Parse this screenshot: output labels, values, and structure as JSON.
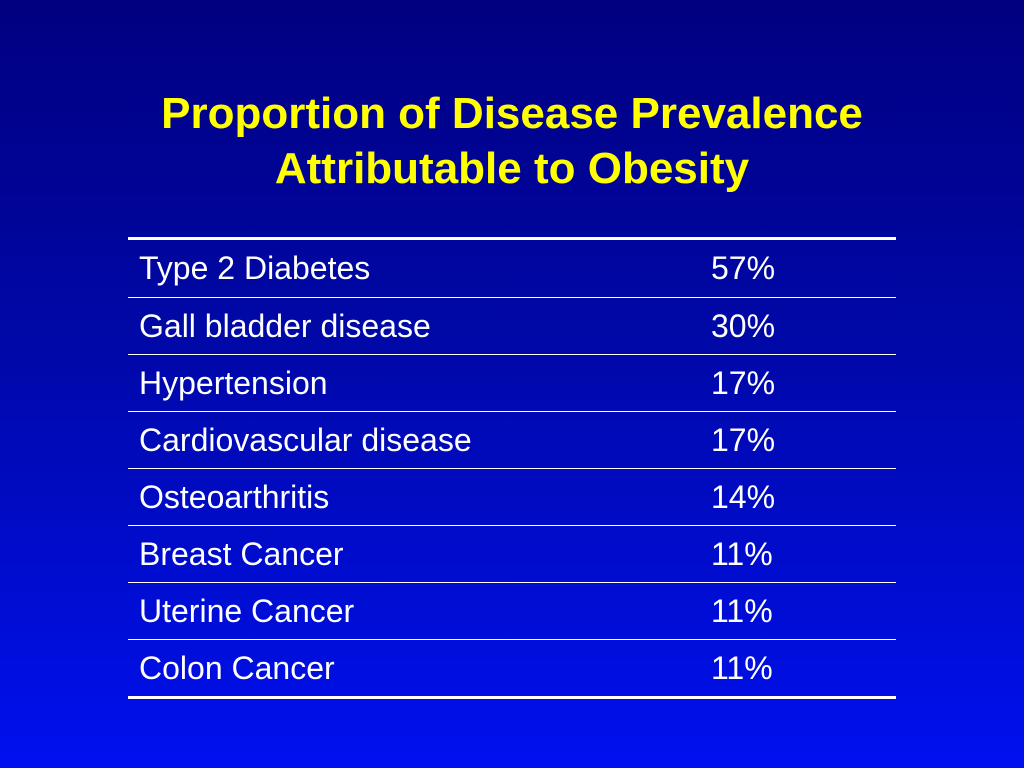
{
  "slide": {
    "title_line1": "Proportion of Disease Prevalence",
    "title_line2": "Attributable to Obesity"
  },
  "table": {
    "rows": [
      {
        "condition": "Type 2 Diabetes",
        "value": "57%"
      },
      {
        "condition": "Gall bladder disease",
        "value": "30%"
      },
      {
        "condition": "Hypertension",
        "value": "17%"
      },
      {
        "condition": "Cardiovascular disease",
        "value": "17%"
      },
      {
        "condition": "Osteoarthritis",
        "value": "14%"
      },
      {
        "condition": "Breast Cancer",
        "value": "11%"
      },
      {
        "condition": "Uterine Cancer",
        "value": "11%"
      },
      {
        "condition": "Colon Cancer",
        "value": "11%"
      }
    ]
  },
  "colors": {
    "title": "#ffff00",
    "text": "#ffffff",
    "background_top": "#000080",
    "background_bottom": "#0010f0"
  }
}
